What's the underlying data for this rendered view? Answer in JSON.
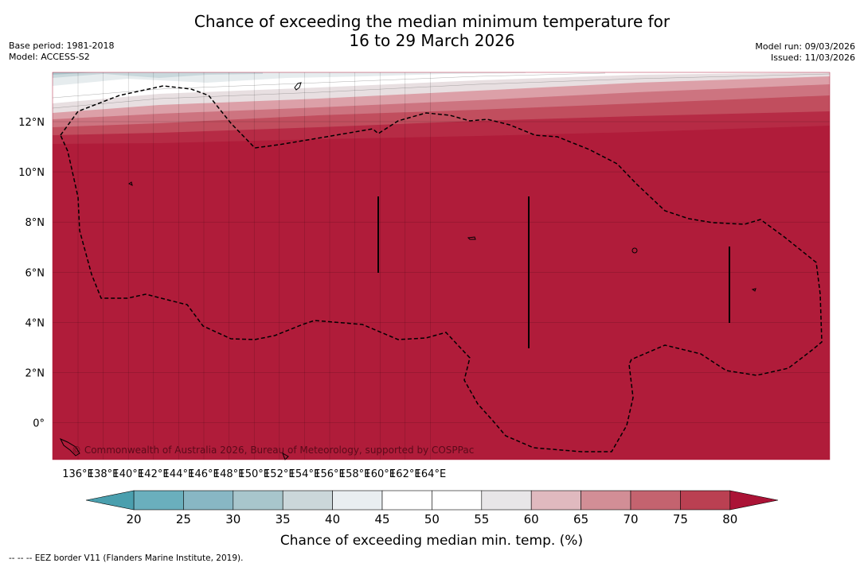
{
  "header": {
    "title_line1": "Chance of exceeding the median minimum temperature for",
    "title_line2": "16 to 29 March 2026",
    "base_period": "Base period: 1981-2018",
    "model": "Model: ACCESS-S2",
    "model_run": "Model run: 09/03/2026",
    "issued": "Issued: 11/03/2026"
  },
  "map": {
    "lon_ticks": [
      "136°E",
      "138°E",
      "140°E",
      "142°E",
      "144°E",
      "146°E",
      "148°E",
      "150°E",
      "152°E",
      "154°E",
      "156°E",
      "158°E",
      "160°E",
      "162°E",
      "164°E"
    ],
    "lat_ticks": [
      "12°N",
      "10°N",
      "8°N",
      "6°N",
      "4°N",
      "2°N",
      "0°"
    ],
    "copyright": "© Commonwealth of Australia 2026, Bureau of Meteorology, supported by COSPPac",
    "dominant_color": "#b01c3a"
  },
  "colorbar": {
    "ticks": [
      "20",
      "25",
      "30",
      "35",
      "40",
      "45",
      "50",
      "55",
      "60",
      "65",
      "70",
      "75",
      "80"
    ],
    "bin_colors": [
      "#6aafbd",
      "#88b7c4",
      "#a8c6cc",
      "#cbd7da",
      "#e9eef1",
      "#ffffff",
      "#ffffff",
      "#e8e6e8",
      "#e0b9bf",
      "#d28e96",
      "#c4636f",
      "#ba4052"
    ],
    "under_color": "#4a9fae",
    "over_color": "#ab1336",
    "label": "Chance of exceeding median min. temp. (%)"
  },
  "footer": {
    "legend": "--  --  -- EEZ border V11 (Flanders Marine Institute, 2019)."
  }
}
